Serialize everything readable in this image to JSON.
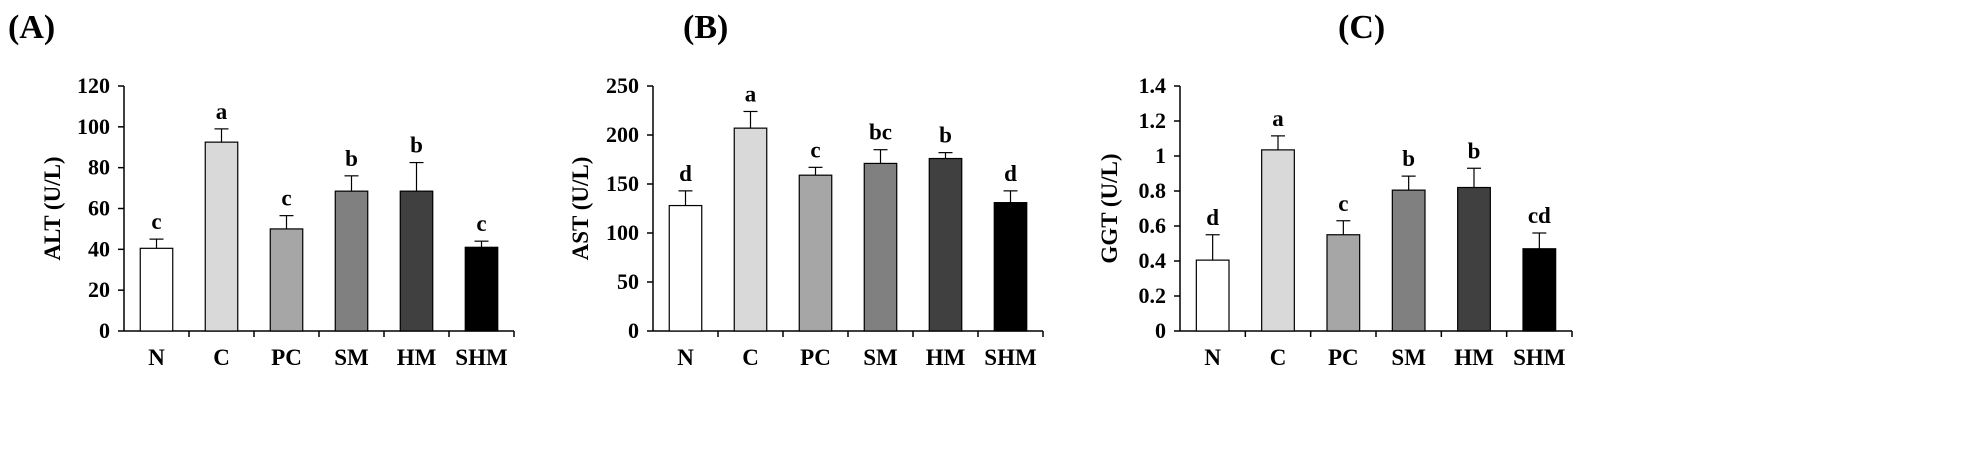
{
  "colors": {
    "N": "#ffffff",
    "C": "#d9d9d9",
    "PC": "#a6a6a6",
    "SM": "#808080",
    "HM": "#404040",
    "SHM": "#000000",
    "edge": "#000000"
  },
  "chart_data": [
    {
      "type": "bar",
      "panel_label": "(A)",
      "ylabel": "ALT (U/L)",
      "categories": [
        "N",
        "C",
        "PC",
        "SM",
        "HM",
        "SHM"
      ],
      "values": [
        40.5,
        92.5,
        50,
        68.5,
        68.5,
        41
      ],
      "errors": [
        4.5,
        6.5,
        6.5,
        7.5,
        14,
        3
      ],
      "significance": [
        "c",
        "a",
        "c",
        "b",
        "b",
        "c"
      ],
      "ylim": [
        0,
        120
      ],
      "yticks": [
        0,
        20,
        40,
        60,
        80,
        100,
        120
      ],
      "ytick_labels": [
        "0",
        "20",
        "40",
        "60",
        "80",
        "100",
        "120"
      ]
    },
    {
      "type": "bar",
      "panel_label": "(B)",
      "ylabel": "AST (U/L)",
      "categories": [
        "N",
        "C",
        "PC",
        "SM",
        "HM",
        "SHM"
      ],
      "values": [
        128,
        207,
        159,
        171,
        176,
        131
      ],
      "errors": [
        15,
        17,
        8,
        14,
        6,
        12
      ],
      "significance": [
        "d",
        "a",
        "c",
        "bc",
        "b",
        "d"
      ],
      "ylim": [
        0,
        250
      ],
      "yticks": [
        0,
        50,
        100,
        150,
        200,
        250
      ],
      "ytick_labels": [
        "0",
        "50",
        "100",
        "150",
        "200",
        "250"
      ]
    },
    {
      "type": "bar",
      "panel_label": "(C)",
      "ylabel": "GGT (U/L)",
      "categories": [
        "N",
        "C",
        "PC",
        "SM",
        "HM",
        "SHM"
      ],
      "values": [
        0.405,
        1.035,
        0.55,
        0.805,
        0.82,
        0.47
      ],
      "errors": [
        0.145,
        0.08,
        0.08,
        0.08,
        0.11,
        0.09
      ],
      "significance": [
        "d",
        "a",
        "c",
        "b",
        "b",
        "cd"
      ],
      "ylim": [
        0,
        1.4
      ],
      "yticks": [
        0,
        0.2,
        0.4,
        0.6,
        0.8,
        1.0,
        1.2,
        1.4
      ],
      "ytick_labels": [
        "0",
        "0.2",
        "0.4",
        "0.6",
        "0.8",
        "1",
        "1.2",
        "1.4"
      ]
    }
  ]
}
